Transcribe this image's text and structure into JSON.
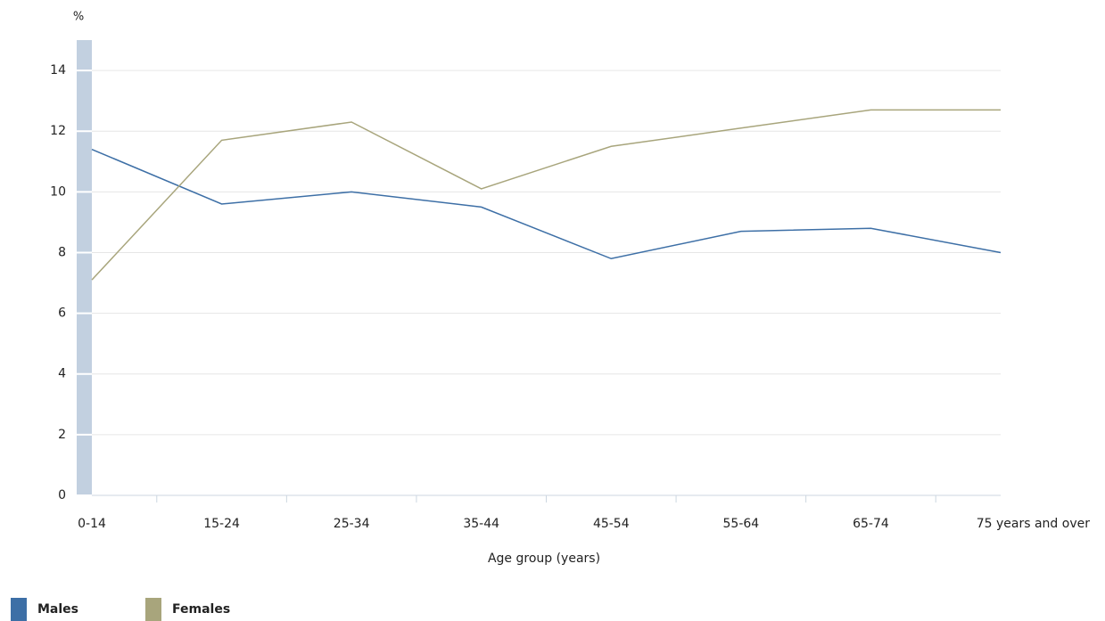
{
  "chart_data": {
    "type": "line",
    "y_label": "%",
    "x_label": "Age group (years)",
    "categories": [
      "0-14",
      "15-24",
      "25-34",
      "35-44",
      "45-54",
      "55-64",
      "65-74",
      "75 years and over"
    ],
    "series": [
      {
        "name": "Males",
        "color": "#3d6fa6",
        "values": [
          11.4,
          9.6,
          10.0,
          9.5,
          7.8,
          8.7,
          8.8,
          8.0
        ]
      },
      {
        "name": "Females",
        "color": "#a8a57c",
        "values": [
          7.1,
          11.7,
          12.3,
          10.1,
          11.5,
          12.1,
          12.7,
          12.7
        ]
      }
    ],
    "ylim": [
      0,
      15
    ],
    "yticks": [
      0,
      2,
      4,
      6,
      8,
      10,
      12,
      14
    ],
    "grid": true
  }
}
